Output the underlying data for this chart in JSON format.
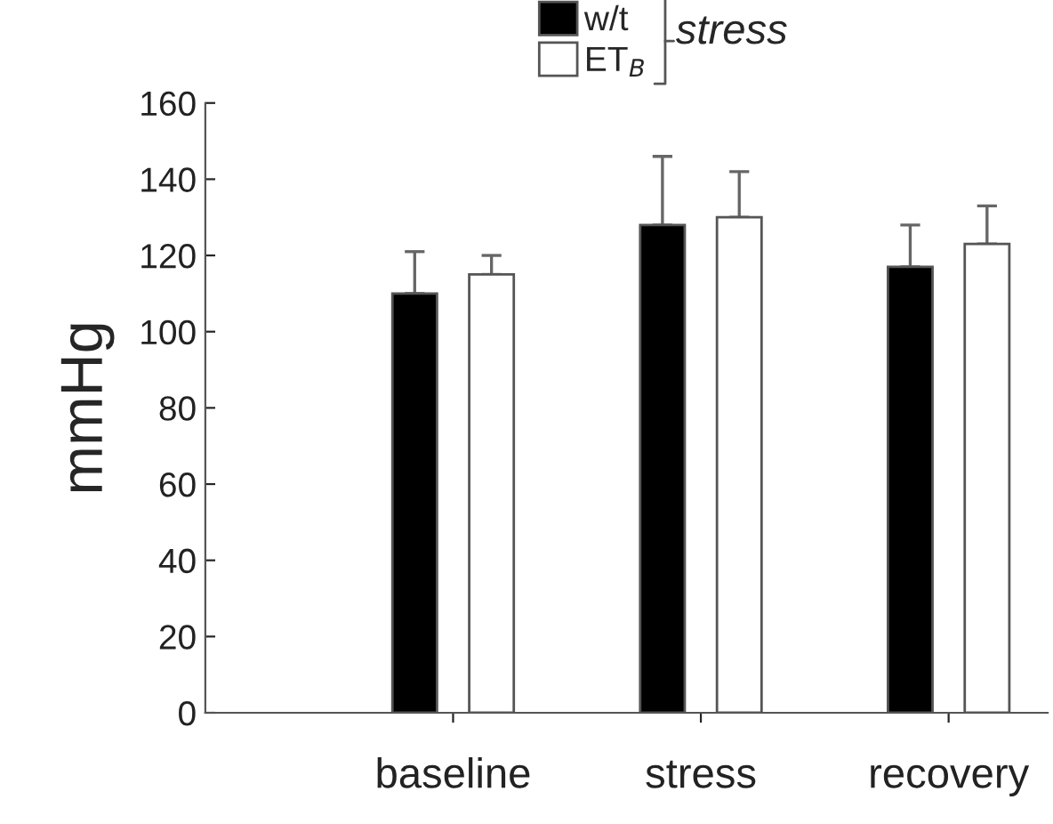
{
  "chart_data": {
    "type": "bar",
    "ylabel": "mmHg",
    "legend_title": "stress",
    "categories": [
      "baseline",
      "stress",
      "recovery"
    ],
    "series": [
      {
        "name": "w/t",
        "color": "#000000",
        "values": [
          110,
          128,
          117
        ],
        "errors": [
          [
            110,
            121
          ],
          [
            128,
            146
          ],
          [
            117,
            128
          ]
        ]
      },
      {
        "name": "ET$_{B}$",
        "color": "#ffffff",
        "values": [
          115,
          130,
          123
        ],
        "errors": [
          [
            115,
            120
          ],
          [
            130,
            142
          ],
          [
            123,
            133
          ]
        ]
      }
    ],
    "ylim": [
      0,
      160
    ],
    "yticks": [
      0,
      20,
      40,
      60,
      80,
      100,
      120,
      140,
      160
    ],
    "grid": false,
    "legend": "top"
  }
}
